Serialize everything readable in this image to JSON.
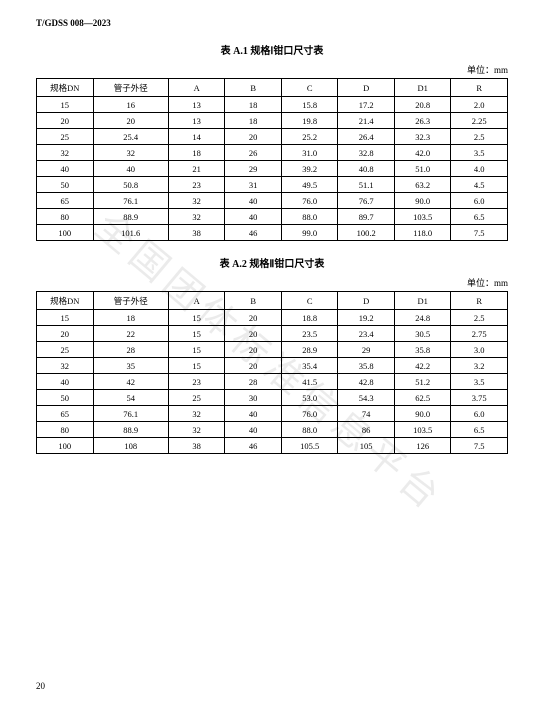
{
  "header_code": "T/GDSS 008—2023",
  "page_number": "20",
  "watermark_text": "全国团体标准信息平台",
  "unit_label": "单位：mm",
  "table1": {
    "title": "表 A.1  规格Ⅰ钳口尺寸表",
    "columns": [
      "规格DN",
      "管子外径",
      "A",
      "B",
      "C",
      "D",
      "D1",
      "R"
    ],
    "rows": [
      [
        "15",
        "16",
        "13",
        "18",
        "15.8",
        "17.2",
        "20.8",
        "2.0"
      ],
      [
        "20",
        "20",
        "13",
        "18",
        "19.8",
        "21.4",
        "26.3",
        "2.25"
      ],
      [
        "25",
        "25.4",
        "14",
        "20",
        "25.2",
        "26.4",
        "32.3",
        "2.5"
      ],
      [
        "32",
        "32",
        "18",
        "26",
        "31.0",
        "32.8",
        "42.0",
        "3.5"
      ],
      [
        "40",
        "40",
        "21",
        "29",
        "39.2",
        "40.8",
        "51.0",
        "4.0"
      ],
      [
        "50",
        "50.8",
        "23",
        "31",
        "49.5",
        "51.1",
        "63.2",
        "4.5"
      ],
      [
        "65",
        "76.1",
        "32",
        "40",
        "76.0",
        "76.7",
        "90.0",
        "6.0"
      ],
      [
        "80",
        "88.9",
        "32",
        "40",
        "88.0",
        "89.7",
        "103.5",
        "6.5"
      ],
      [
        "100",
        "101.6",
        "38",
        "46",
        "99.0",
        "100.2",
        "118.0",
        "7.5"
      ]
    ]
  },
  "table2": {
    "title": "表 A.2  规格Ⅱ钳口尺寸表",
    "columns": [
      "规格DN",
      "管子外径",
      "A",
      "B",
      "C",
      "D",
      "D1",
      "R"
    ],
    "rows": [
      [
        "15",
        "18",
        "15",
        "20",
        "18.8",
        "19.2",
        "24.8",
        "2.5"
      ],
      [
        "20",
        "22",
        "15",
        "20",
        "23.5",
        "23.4",
        "30.5",
        "2.75"
      ],
      [
        "25",
        "28",
        "15",
        "20",
        "28.9",
        "29",
        "35.8",
        "3.0"
      ],
      [
        "32",
        "35",
        "15",
        "20",
        "35.4",
        "35.8",
        "42.2",
        "3.2"
      ],
      [
        "40",
        "42",
        "23",
        "28",
        "41.5",
        "42.8",
        "51.2",
        "3.5"
      ],
      [
        "50",
        "54",
        "25",
        "30",
        "53.0",
        "54.3",
        "62.5",
        "3.75"
      ],
      [
        "65",
        "76.1",
        "32",
        "40",
        "76.0",
        "74",
        "90.0",
        "6.0"
      ],
      [
        "80",
        "88.9",
        "32",
        "40",
        "88.0",
        "86",
        "103.5",
        "6.5"
      ],
      [
        "100",
        "108",
        "38",
        "46",
        "105.5",
        "105",
        "126",
        "7.5"
      ]
    ]
  }
}
